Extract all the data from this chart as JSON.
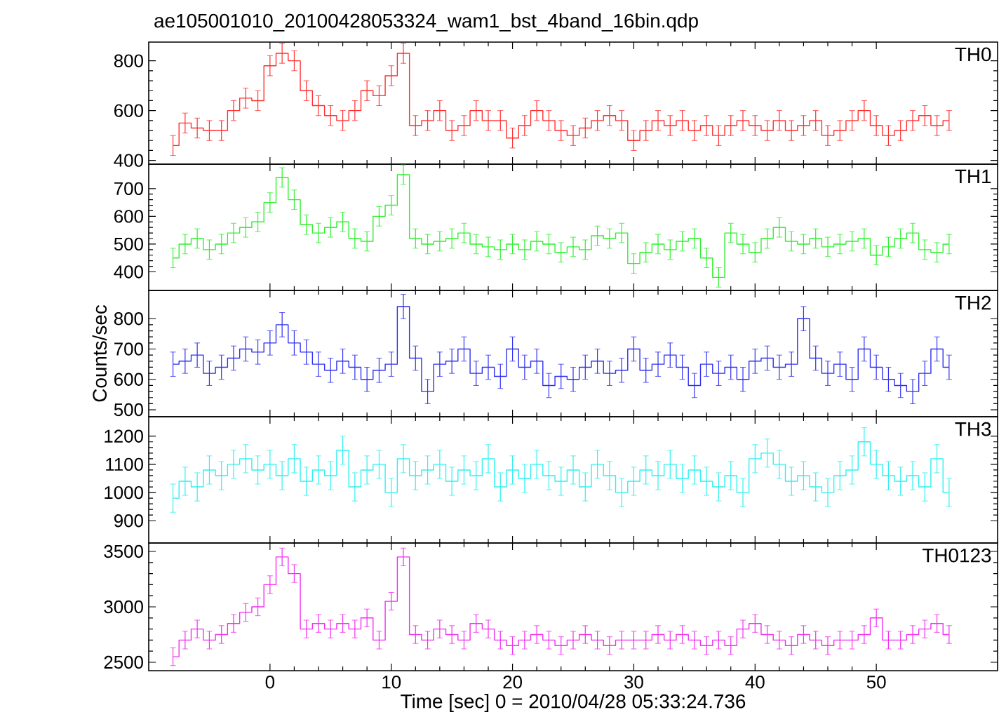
{
  "chart_data": [
    {
      "type": "step",
      "title": "ae105001010_20100428053324_wam1_bst_4band_16bin.qdp",
      "tick_labels": "y",
      "xlim": [
        -10,
        60
      ],
      "ylim": [
        385,
        875
      ],
      "xticks": [
        0,
        10,
        20,
        30,
        40,
        50
      ],
      "yticks": [
        400,
        600,
        800
      ],
      "x": [
        -8,
        -7,
        -6,
        -5,
        -4,
        -3,
        -2,
        -1,
        0,
        1,
        2,
        3,
        4,
        5,
        6,
        7,
        8,
        9,
        10,
        11,
        12,
        13,
        14,
        15,
        16,
        17,
        18,
        19,
        20,
        21,
        22,
        23,
        24,
        25,
        26,
        27,
        28,
        29,
        30,
        31,
        32,
        33,
        34,
        35,
        36,
        37,
        38,
        39,
        40,
        41,
        42,
        43,
        44,
        45,
        46,
        47,
        48,
        49,
        50,
        51,
        52,
        53,
        54,
        55,
        56
      ],
      "series": [
        {
          "name": "TH0",
          "color": "#ff3030",
          "values": [
            460,
            550,
            530,
            520,
            520,
            600,
            650,
            640,
            780,
            830,
            800,
            680,
            620,
            580,
            560,
            600,
            680,
            660,
            740,
            830,
            540,
            560,
            600,
            520,
            540,
            600,
            560,
            560,
            490,
            540,
            600,
            560,
            520,
            500,
            530,
            560,
            580,
            560,
            480,
            520,
            560,
            540,
            560,
            520,
            540,
            500,
            540,
            560,
            540,
            520,
            560,
            520,
            540,
            560,
            500,
            520,
            560,
            600,
            540,
            500,
            520,
            560,
            580,
            540,
            560
          ],
          "errors": [
            40,
            40,
            40,
            40,
            40,
            40,
            40,
            40,
            40,
            40,
            40,
            40,
            40,
            40,
            40,
            40,
            40,
            40,
            40,
            40,
            40,
            40,
            40,
            40,
            40,
            40,
            40,
            40,
            40,
            40,
            40,
            40,
            40,
            40,
            40,
            40,
            40,
            40,
            40,
            40,
            40,
            40,
            40,
            40,
            40,
            40,
            40,
            40,
            40,
            40,
            40,
            40,
            40,
            40,
            40,
            40,
            40,
            40,
            40,
            40,
            40,
            40,
            40,
            40,
            40
          ]
        }
      ]
    },
    {
      "type": "step",
      "tick_labels": "y",
      "xlim": [
        -10,
        60
      ],
      "ylim": [
        333,
        788
      ],
      "xticks": [
        0,
        10,
        20,
        30,
        40,
        50
      ],
      "yticks": [
        400,
        500,
        600,
        700
      ],
      "x": [
        -8,
        -7,
        -6,
        -5,
        -4,
        -3,
        -2,
        -1,
        0,
        1,
        2,
        3,
        4,
        5,
        6,
        7,
        8,
        9,
        10,
        11,
        12,
        13,
        14,
        15,
        16,
        17,
        18,
        19,
        20,
        21,
        22,
        23,
        24,
        25,
        26,
        27,
        28,
        29,
        30,
        31,
        32,
        33,
        34,
        35,
        36,
        37,
        38,
        39,
        40,
        41,
        42,
        43,
        44,
        45,
        46,
        47,
        48,
        49,
        50,
        51,
        52,
        53,
        54,
        55,
        56
      ],
      "series": [
        {
          "name": "TH1",
          "color": "#30f030",
          "values": [
            450,
            500,
            520,
            480,
            500,
            540,
            560,
            580,
            650,
            740,
            660,
            570,
            540,
            560,
            580,
            520,
            510,
            600,
            640,
            750,
            520,
            500,
            510,
            520,
            540,
            500,
            490,
            480,
            500,
            480,
            510,
            500,
            470,
            490,
            480,
            530,
            520,
            540,
            430,
            470,
            500,
            480,
            510,
            520,
            450,
            380,
            540,
            500,
            470,
            520,
            560,
            510,
            500,
            520,
            490,
            500,
            510,
            520,
            460,
            490,
            520,
            540,
            480,
            470,
            500
          ],
          "errors": [
            35,
            35,
            35,
            35,
            35,
            35,
            35,
            35,
            35,
            35,
            35,
            35,
            35,
            35,
            35,
            35,
            35,
            35,
            35,
            35,
            35,
            35,
            35,
            35,
            35,
            35,
            35,
            35,
            35,
            35,
            35,
            35,
            35,
            35,
            35,
            35,
            35,
            35,
            35,
            35,
            35,
            35,
            35,
            35,
            35,
            35,
            35,
            35,
            35,
            35,
            35,
            35,
            35,
            35,
            35,
            35,
            35,
            35,
            35,
            35,
            35,
            35,
            35,
            35,
            35
          ]
        }
      ]
    },
    {
      "type": "step",
      "ylabel": "Counts/sec",
      "tick_labels": "y",
      "xlim": [
        -10,
        60
      ],
      "ylim": [
        477,
        893
      ],
      "xticks": [
        0,
        10,
        20,
        30,
        40,
        50
      ],
      "yticks": [
        500,
        600,
        700,
        800
      ],
      "x": [
        -8,
        -7,
        -6,
        -5,
        -4,
        -3,
        -2,
        -1,
        0,
        1,
        2,
        3,
        4,
        5,
        6,
        7,
        8,
        9,
        10,
        11,
        12,
        13,
        14,
        15,
        16,
        17,
        18,
        19,
        20,
        21,
        22,
        23,
        24,
        25,
        26,
        27,
        28,
        29,
        30,
        31,
        32,
        33,
        34,
        35,
        36,
        37,
        38,
        39,
        40,
        41,
        42,
        43,
        44,
        45,
        46,
        47,
        48,
        49,
        50,
        51,
        52,
        53,
        54,
        55,
        56
      ],
      "series": [
        {
          "name": "TH2",
          "color": "#3030f0",
          "values": [
            650,
            660,
            680,
            620,
            640,
            670,
            700,
            690,
            720,
            780,
            720,
            690,
            650,
            630,
            660,
            640,
            600,
            630,
            650,
            840,
            670,
            560,
            650,
            660,
            700,
            620,
            640,
            610,
            700,
            640,
            660,
            580,
            610,
            600,
            640,
            660,
            620,
            630,
            700,
            630,
            650,
            680,
            640,
            580,
            650,
            620,
            640,
            600,
            660,
            670,
            640,
            650,
            800,
            670,
            620,
            650,
            600,
            700,
            640,
            600,
            580,
            560,
            620,
            700,
            640
          ],
          "errors": [
            40,
            40,
            40,
            40,
            40,
            40,
            40,
            40,
            40,
            40,
            40,
            40,
            40,
            40,
            40,
            40,
            40,
            40,
            40,
            40,
            40,
            40,
            40,
            40,
            40,
            40,
            40,
            40,
            40,
            40,
            40,
            40,
            40,
            40,
            40,
            40,
            40,
            40,
            40,
            40,
            40,
            40,
            40,
            40,
            40,
            40,
            40,
            40,
            40,
            40,
            40,
            40,
            40,
            40,
            40,
            40,
            40,
            40,
            40,
            40,
            40,
            40,
            40,
            40,
            40
          ]
        }
      ]
    },
    {
      "type": "step",
      "tick_labels": "y",
      "xlim": [
        -10,
        60
      ],
      "ylim": [
        821,
        1269
      ],
      "xticks": [
        0,
        10,
        20,
        30,
        40,
        50
      ],
      "yticks": [
        900,
        1000,
        1100,
        1200
      ],
      "x": [
        -8,
        -7,
        -6,
        -5,
        -4,
        -3,
        -2,
        -1,
        0,
        1,
        2,
        3,
        4,
        5,
        6,
        7,
        8,
        9,
        10,
        11,
        12,
        13,
        14,
        15,
        16,
        17,
        18,
        19,
        20,
        21,
        22,
        23,
        24,
        25,
        26,
        27,
        28,
        29,
        30,
        31,
        32,
        33,
        34,
        35,
        36,
        37,
        38,
        39,
        40,
        41,
        42,
        43,
        44,
        45,
        46,
        47,
        48,
        49,
        50,
        51,
        52,
        53,
        54,
        55,
        56
      ],
      "series": [
        {
          "name": "TH3",
          "color": "#30f0f0",
          "values": [
            980,
            1040,
            1020,
            1080,
            1060,
            1100,
            1120,
            1080,
            1100,
            1060,
            1120,
            1040,
            1080,
            1060,
            1150,
            1020,
            1080,
            1100,
            1000,
            1120,
            1060,
            1080,
            1100,
            1040,
            1080,
            1060,
            1120,
            1020,
            1080,
            1050,
            1100,
            1060,
            1040,
            1080,
            1020,
            1100,
            1060,
            1000,
            1040,
            1080,
            1060,
            1100,
            1050,
            1080,
            1040,
            1020,
            1060,
            1000,
            1120,
            1140,
            1100,
            1040,
            1060,
            1020,
            1000,
            1060,
            1080,
            1180,
            1100,
            1060,
            1040,
            1060,
            1020,
            1120,
            1000
          ],
          "errors": [
            50,
            50,
            50,
            50,
            50,
            50,
            50,
            50,
            50,
            50,
            50,
            50,
            50,
            50,
            50,
            50,
            50,
            50,
            50,
            50,
            50,
            50,
            50,
            50,
            50,
            50,
            50,
            50,
            50,
            50,
            50,
            50,
            50,
            50,
            50,
            50,
            50,
            50,
            50,
            50,
            50,
            50,
            50,
            50,
            50,
            50,
            50,
            50,
            50,
            50,
            50,
            50,
            50,
            50,
            50,
            50,
            50,
            50,
            50,
            50,
            50,
            50,
            50,
            50,
            50
          ]
        }
      ]
    },
    {
      "type": "step",
      "xlabel": "Time [sec] 0 = 2010/04/28 05:33:24.736",
      "xlim": [
        -10,
        60
      ],
      "ylim": [
        2424,
        3576
      ],
      "xticks": [
        0,
        10,
        20,
        30,
        40,
        50
      ],
      "yticks": [
        2500,
        3000,
        3500
      ],
      "x": [
        -8,
        -7,
        -6,
        -5,
        -4,
        -3,
        -2,
        -1,
        0,
        1,
        2,
        3,
        4,
        5,
        6,
        7,
        8,
        9,
        10,
        11,
        12,
        13,
        14,
        15,
        16,
        17,
        18,
        19,
        20,
        21,
        22,
        23,
        24,
        25,
        26,
        27,
        28,
        29,
        30,
        31,
        32,
        33,
        34,
        35,
        36,
        37,
        38,
        39,
        40,
        41,
        42,
        43,
        44,
        45,
        46,
        47,
        48,
        49,
        50,
        51,
        52,
        53,
        54,
        55,
        56
      ],
      "series": [
        {
          "name": "TH0123",
          "color": "#f030f0",
          "values": [
            2550,
            2700,
            2800,
            2700,
            2750,
            2850,
            2950,
            3000,
            3200,
            3450,
            3300,
            2800,
            2850,
            2800,
            2850,
            2800,
            2900,
            2700,
            3050,
            3450,
            2750,
            2700,
            2800,
            2750,
            2700,
            2850,
            2800,
            2700,
            2650,
            2700,
            2750,
            2700,
            2650,
            2700,
            2750,
            2700,
            2650,
            2700,
            2700,
            2700,
            2750,
            2700,
            2750,
            2700,
            2650,
            2700,
            2650,
            2800,
            2850,
            2750,
            2700,
            2650,
            2750,
            2700,
            2650,
            2700,
            2700,
            2750,
            2900,
            2700,
            2700,
            2750,
            2800,
            2850,
            2750
          ],
          "errors": [
            80,
            80,
            80,
            80,
            80,
            80,
            80,
            80,
            80,
            80,
            80,
            80,
            80,
            80,
            80,
            80,
            80,
            80,
            80,
            80,
            80,
            80,
            80,
            80,
            80,
            80,
            80,
            80,
            80,
            80,
            80,
            80,
            80,
            80,
            80,
            80,
            80,
            80,
            80,
            80,
            80,
            80,
            80,
            80,
            80,
            80,
            80,
            80,
            80,
            80,
            80,
            80,
            80,
            80,
            80,
            80,
            80,
            80,
            80,
            80,
            80,
            80,
            80,
            80,
            80
          ]
        }
      ]
    }
  ]
}
